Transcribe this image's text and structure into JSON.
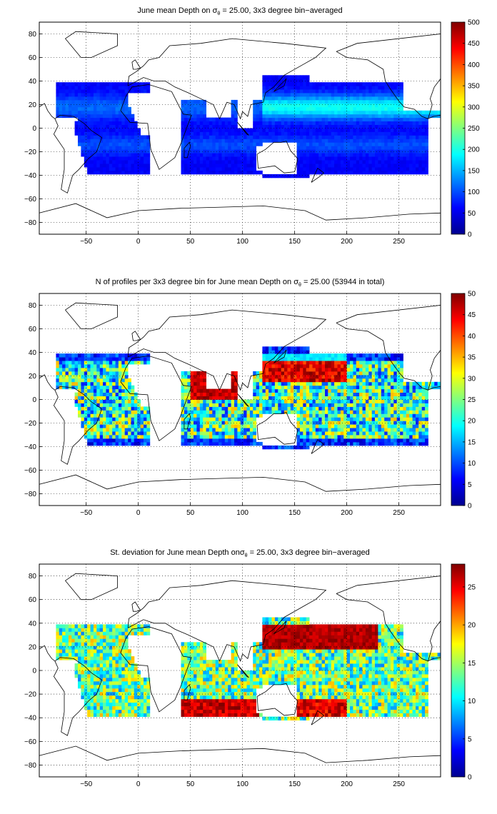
{
  "chart_data": [
    {
      "type": "heatmap",
      "title_prefix": "June mean Depth on ",
      "title_symbol": "σ",
      "title_subscript": "θ",
      "title_suffix": " = 25.00, 3x3 degree bin−averaged",
      "xlim": [
        -95,
        290
      ],
      "ylim": [
        -90,
        90
      ],
      "xticks": [
        -50,
        0,
        50,
        100,
        150,
        200,
        250
      ],
      "yticks": [
        -80,
        -60,
        -40,
        -20,
        0,
        20,
        40,
        60,
        80
      ],
      "colorbar": {
        "min": 0,
        "max": 500,
        "ticks": [
          0,
          50,
          100,
          150,
          200,
          250,
          300,
          350,
          400,
          450,
          500
        ]
      },
      "grid": true,
      "colormap": "jet"
    },
    {
      "type": "heatmap",
      "title_prefix": "N of profiles per 3x3 degree bin for June mean Depth on ",
      "title_symbol": "σ",
      "title_subscript": "θ",
      "title_suffix": " = 25.00 (53944 in total)",
      "xlim": [
        -95,
        290
      ],
      "ylim": [
        -90,
        90
      ],
      "xticks": [
        -50,
        0,
        50,
        100,
        150,
        200,
        250
      ],
      "yticks": [
        -80,
        -60,
        -40,
        -20,
        0,
        20,
        40,
        60,
        80
      ],
      "colorbar": {
        "min": 0,
        "max": 50,
        "ticks": [
          0,
          5,
          10,
          15,
          20,
          25,
          30,
          35,
          40,
          45,
          50
        ]
      },
      "grid": true,
      "colormap": "jet"
    },
    {
      "type": "heatmap",
      "title_prefix": "St. deviation for June mean Depth on",
      "title_symbol": "σ",
      "title_subscript": "θ",
      "title_suffix": " = 25.00, 3x3 degree bin−averaged",
      "xlim": [
        -95,
        290
      ],
      "ylim": [
        -90,
        90
      ],
      "xticks": [
        -50,
        0,
        50,
        100,
        150,
        200,
        250
      ],
      "yticks": [
        -80,
        -60,
        -40,
        -20,
        0,
        20,
        40,
        60,
        80
      ],
      "colorbar": {
        "min": 0,
        "max": 28,
        "ticks": [
          0,
          5,
          10,
          15,
          20,
          25
        ]
      },
      "grid": true,
      "colormap": "jet"
    }
  ]
}
